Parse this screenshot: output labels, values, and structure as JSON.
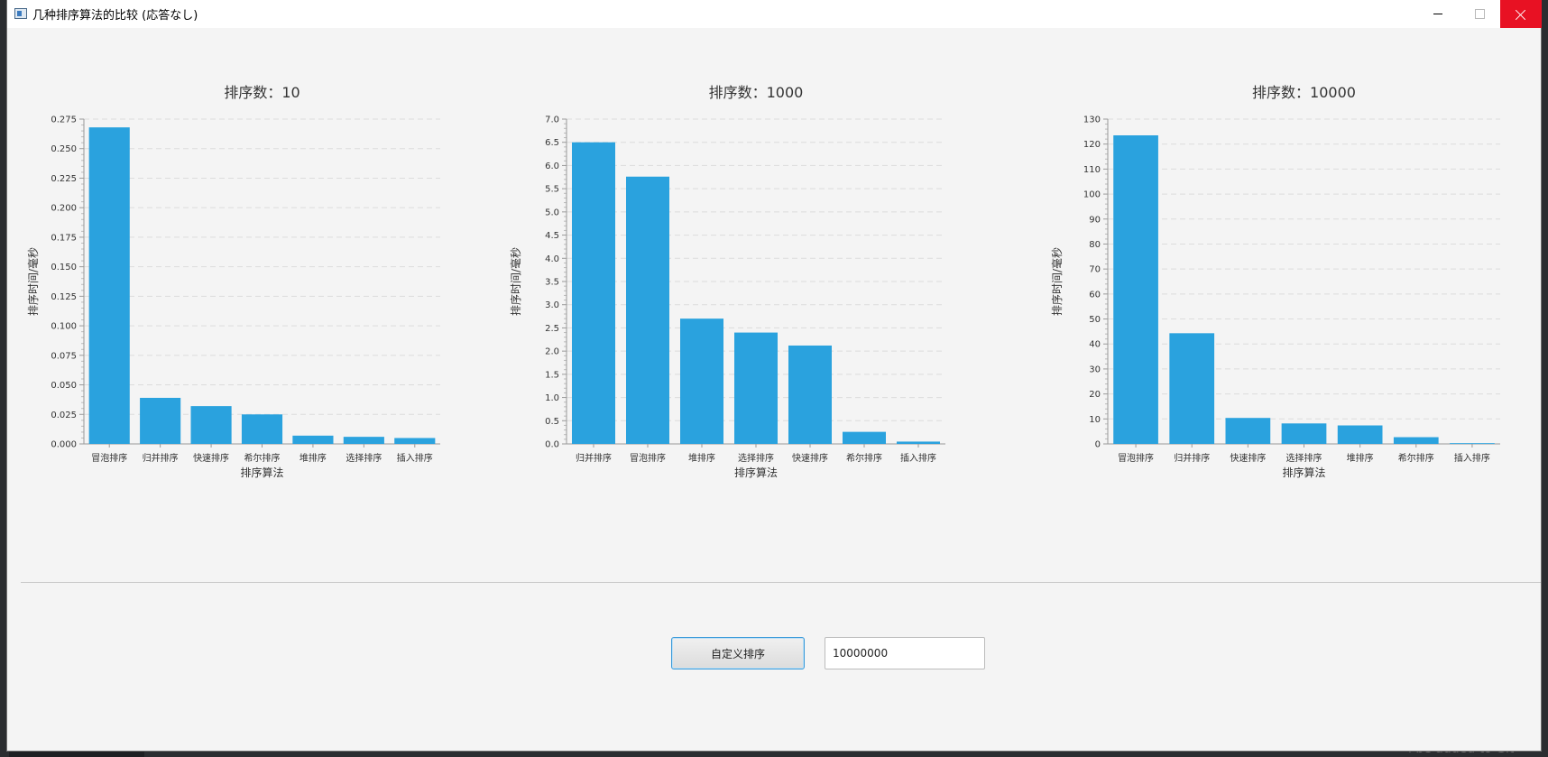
{
  "window": {
    "title": "几种排序算法的比较 (応答なし)"
  },
  "background_hint": "l be added to Git",
  "colors": {
    "bar": "#2aa2de",
    "grid": "#dcdcdc",
    "close_button": "#e81123",
    "button_border": "#3a9ad9"
  },
  "controls": {
    "custom_sort_label": "自定义排序",
    "count_value": "10000000"
  },
  "chart_data": [
    {
      "type": "bar",
      "title": "排序数：10",
      "xlabel": "排序算法",
      "ylabel": "排序时间/毫秒",
      "categories": [
        "冒泡排序",
        "归并排序",
        "快速排序",
        "希尔排序",
        "堆排序",
        "选择排序",
        "插入排序"
      ],
      "values": [
        0.268,
        0.039,
        0.032,
        0.025,
        0.007,
        0.006,
        0.005
      ],
      "ylim": [
        0,
        0.275
      ],
      "yticks": [
        "0.000",
        "0.025",
        "0.050",
        "0.075",
        "0.100",
        "0.125",
        "0.150",
        "0.175",
        "0.200",
        "0.225",
        "0.250",
        "0.275"
      ],
      "grid": true,
      "legend": false
    },
    {
      "type": "bar",
      "title": "排序数：1000",
      "xlabel": "排序算法",
      "ylabel": "排序时间/毫秒",
      "categories": [
        "归并排序",
        "冒泡排序",
        "堆排序",
        "选择排序",
        "快速排序",
        "希尔排序",
        "插入排序"
      ],
      "values": [
        6.5,
        5.76,
        2.7,
        2.4,
        2.12,
        0.26,
        0.05
      ],
      "ylim": [
        0,
        7.0
      ],
      "yticks": [
        "0.0",
        "0.5",
        "1.0",
        "1.5",
        "2.0",
        "2.5",
        "3.0",
        "3.5",
        "4.0",
        "4.5",
        "5.0",
        "5.5",
        "6.0",
        "6.5",
        "7.0"
      ],
      "grid": true,
      "legend": false
    },
    {
      "type": "bar",
      "title": "排序数：10000",
      "xlabel": "排序算法",
      "ylabel": "排序时间/毫秒",
      "categories": [
        "冒泡排序",
        "归并排序",
        "快速排序",
        "选择排序",
        "堆排序",
        "希尔排序",
        "插入排序"
      ],
      "values": [
        123.5,
        44.3,
        10.4,
        8.2,
        7.4,
        2.7,
        0.3
      ],
      "ylim": [
        0,
        130
      ],
      "yticks": [
        "0",
        "10",
        "20",
        "30",
        "40",
        "50",
        "60",
        "70",
        "80",
        "90",
        "100",
        "110",
        "120",
        "130"
      ],
      "grid": true,
      "legend": false
    }
  ]
}
